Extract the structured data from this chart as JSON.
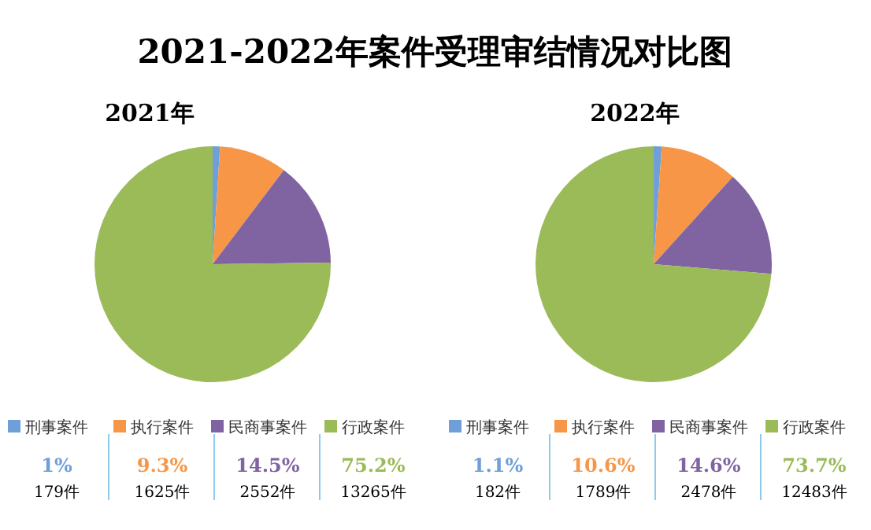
{
  "chart_data": [
    {
      "type": "pie",
      "title": "2021-2022年案件受理审结情况对比图",
      "subtitle": "2021年",
      "categories": [
        "刑事案件",
        "执行案件",
        "民商事案件",
        "行政案件"
      ],
      "values": [
        1,
        9.3,
        14.5,
        75.2
      ],
      "value_labels": [
        "1%",
        "9.3%",
        "14.5%",
        "75.2%"
      ],
      "colors": [
        "#6f9fd8",
        "#f79646",
        "#8064a2",
        "#9bbb59"
      ],
      "legend": "bottom",
      "annotations": [
        "179件",
        "1625件",
        "2552件",
        "13265件"
      ]
    },
    {
      "type": "pie",
      "subtitle": "2022年",
      "categories": [
        "刑事案件",
        "执行案件",
        "民商事案件",
        "行政案件"
      ],
      "values": [
        1.1,
        10.6,
        14.6,
        73.7
      ],
      "value_labels": [
        "1.1%",
        "10.6%",
        "14.6%",
        "73.7%"
      ],
      "colors": [
        "#6f9fd8",
        "#f79646",
        "#8064a2",
        "#9bbb59"
      ],
      "legend": "bottom",
      "annotations": [
        "182件",
        "1789件",
        "2478件",
        "12483件"
      ]
    }
  ]
}
